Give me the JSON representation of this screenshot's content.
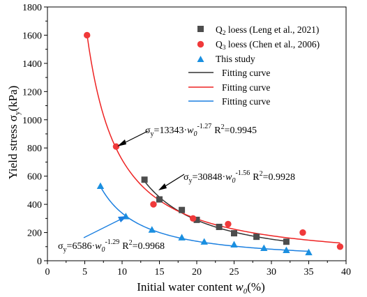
{
  "chart_data": {
    "type": "scatter",
    "xlabel": "Initial water content ",
    "xlabel_var": "w",
    "xlabel_sub": "0",
    "xlabel_unit": "(%)",
    "ylabel": "Yield stress σ",
    "ylabel_sub": "y",
    "ylabel_unit": "(kPa)",
    "xlim": [
      0,
      40
    ],
    "ylim": [
      0,
      1800
    ],
    "xticks": [
      "0",
      "5",
      "10",
      "15",
      "20",
      "25",
      "30",
      "35",
      "40"
    ],
    "yticks": [
      "0",
      "200",
      "400",
      "600",
      "800",
      "1000",
      "1200",
      "1400",
      "1600",
      "1800"
    ],
    "grid": false,
    "legend_position": "top-right",
    "series": [
      {
        "name": "Q",
        "name_sub": "2",
        "name_rest": " loess (Leng et al., 2021)",
        "marker": "square",
        "color": "#4d4d4d",
        "x": [
          13,
          15,
          18,
          20,
          23,
          25,
          28,
          32
        ],
        "y": [
          575,
          435,
          360,
          290,
          240,
          195,
          170,
          135
        ]
      },
      {
        "name": "Q",
        "name_sub": "3",
        "name_rest": " loess (Chen et al., 2006)",
        "marker": "circle",
        "color": "#f0393a",
        "x": [
          5.3,
          9.2,
          14.2,
          19.5,
          24.2,
          34.2,
          39.2
        ],
        "y": [
          1600,
          810,
          400,
          300,
          260,
          200,
          100
        ]
      },
      {
        "name": "This study",
        "marker": "triangle",
        "color": "#1a8fe0",
        "x": [
          7.1,
          10.5,
          14,
          18,
          21,
          25,
          29,
          32,
          35
        ],
        "y": [
          530,
          315,
          220,
          165,
          135,
          115,
          90,
          75,
          60
        ]
      }
    ],
    "fits": [
      {
        "name": "Fitting curve",
        "color": "#333333",
        "a": 30848,
        "b": -1.56,
        "x_range": [
          13,
          32
        ]
      },
      {
        "name": "Fitting curve",
        "color": "#ee2222",
        "a": 13343,
        "b": -1.27,
        "x_range": [
          5.3,
          39.2
        ]
      },
      {
        "name": "Fitting curve",
        "color": "#1a7fe0",
        "a": 6586,
        "b": -1.29,
        "x_range": [
          7.1,
          35
        ]
      }
    ],
    "annotations": [
      {
        "prefix": "σ",
        "sub": "y",
        "eq": "=13343·",
        "var": "w",
        "var_sub": "0",
        "exp": "-1.27",
        "r2": "R",
        "r2_exp": "2",
        "r2_val": "=0.9945"
      },
      {
        "prefix": "σ",
        "sub": "y",
        "eq": "=30848·",
        "var": "w",
        "var_sub": "0",
        "exp": "-1.56",
        "r2": "R",
        "r2_exp": "2",
        "r2_val": "=0.9928"
      },
      {
        "prefix": "σ",
        "sub": "y",
        "eq": "=6586·",
        "var": "w",
        "var_sub": "0",
        "exp": "-1.29",
        "r2": "R",
        "r2_exp": "2",
        "r2_val": "=0.9968"
      }
    ]
  }
}
